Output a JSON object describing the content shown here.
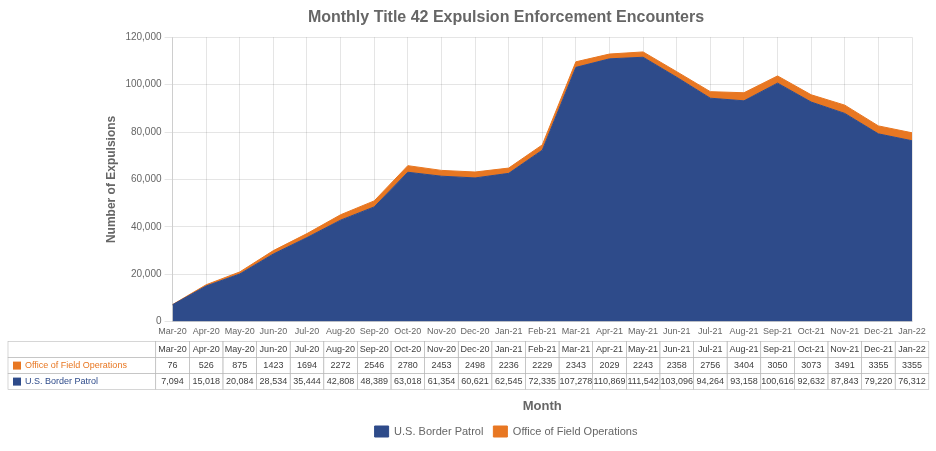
{
  "chart_data": {
    "type": "area",
    "title": "Monthly Title 42 Expulsion Enforcement Encounters",
    "xlabel": "Month",
    "ylabel": "Number of Expulsions",
    "categories": [
      "Mar-20",
      "Apr-20",
      "May-20",
      "Jun-20",
      "Jul-20",
      "Aug-20",
      "Sep-20",
      "Oct-20",
      "Nov-20",
      "Dec-20",
      "Jan-21",
      "Feb-21",
      "Mar-21",
      "Apr-21",
      "May-21",
      "Jun-21",
      "Jul-21",
      "Aug-21",
      "Sep-21",
      "Oct-21",
      "Nov-21",
      "Dec-21",
      "Jan-22"
    ],
    "series": [
      {
        "name": "U.S. Border Patrol",
        "color": "#2E4B8A",
        "values": [
          7094,
          15018,
          20084,
          28534,
          35444,
          42808,
          48389,
          63018,
          61354,
          60621,
          62545,
          72335,
          107278,
          110869,
          111542,
          103096,
          94264,
          93158,
          100616,
          92632,
          87843,
          79220,
          76312
        ],
        "value_labels": [
          "7,094",
          "15,018",
          "20,084",
          "28,534",
          "35,444",
          "42,808",
          "48,389",
          "63,018",
          "61,354",
          "60,621",
          "62,545",
          "72,335",
          "107,278",
          "110,869",
          "111,542",
          "103,096",
          "94,264",
          "93,158",
          "100,616",
          "92,632",
          "87,843",
          "79,220",
          "76,312"
        ]
      },
      {
        "name": "Office of Field Operations",
        "color": "#E87722",
        "values": [
          76,
          526,
          875,
          1423,
          1694,
          2272,
          2546,
          2780,
          2453,
          2498,
          2236,
          2229,
          2343,
          2029,
          2243,
          2358,
          2756,
          3404,
          3050,
          3073,
          3491,
          3355,
          3355
        ]
      }
    ],
    "stacked": true,
    "ylim": [
      0,
      120000
    ],
    "yticks": [
      0,
      {
        "value": 20000,
        "label": "20,000"
      },
      {
        "value": 40000,
        "label": "40,000"
      },
      {
        "value": 60000,
        "label": "60,000"
      },
      {
        "value": 80000,
        "label": "80,000"
      },
      {
        "value": 100000,
        "label": "100,000"
      },
      {
        "value": 120000,
        "label": "120,000"
      }
    ],
    "grid": true,
    "legend": "bottom"
  }
}
